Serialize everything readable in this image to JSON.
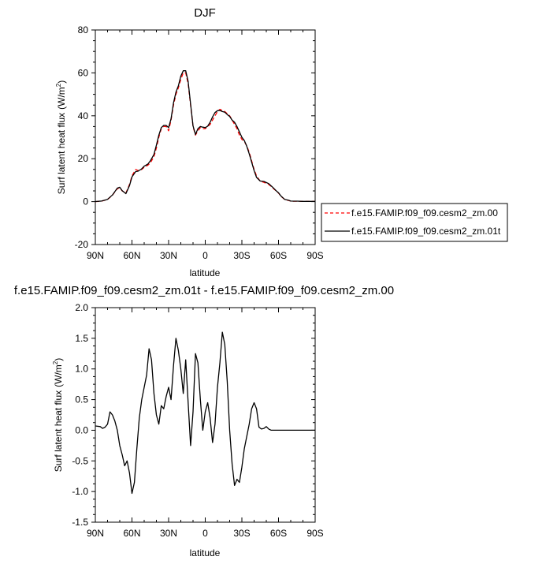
{
  "chart_data": [
    {
      "type": "line",
      "title": "DJF",
      "xlabel": "latitude",
      "ylabel": "Surf latent heat flux",
      "ylabel_unit": "(W/m",
      "ylabel_sup": "2",
      "ylabel_close": ")",
      "xlim": [
        90,
        -90
      ],
      "ylim": [
        -20,
        80
      ],
      "xticks": [
        90,
        60,
        30,
        0,
        -30,
        -60,
        -90
      ],
      "xtick_labels": [
        "90N",
        "60N",
        "30N",
        "0",
        "30S",
        "60S",
        "90S"
      ],
      "yticks": [
        -20,
        0,
        20,
        40,
        60,
        80
      ],
      "ytick_labels": [
        "-20",
        "0",
        "20",
        "40",
        "60",
        "80"
      ],
      "legend_position": "right",
      "series": [
        {
          "name": "f.e15.FAMIP.f09_f09.cesm2_zm.00",
          "color": "#ff0000",
          "dash": "dashed",
          "x": [
            90,
            85,
            80,
            76,
            72,
            70,
            68,
            65,
            62,
            60,
            57,
            55,
            52,
            50,
            47,
            45,
            42,
            40,
            38,
            36,
            34,
            32,
            30,
            28,
            26,
            24,
            22,
            20,
            18,
            16,
            14,
            12,
            10,
            8,
            6,
            4,
            2,
            0,
            -2,
            -4,
            -6,
            -8,
            -10,
            -12,
            -14,
            -16,
            -18,
            -20,
            -22,
            -24,
            -26,
            -28,
            -30,
            -32,
            -34,
            -36,
            -38,
            -40,
            -42,
            -45,
            -48,
            -50,
            -52,
            -55,
            -58,
            -60,
            -62,
            -65,
            -68,
            -70,
            -72,
            -75,
            -80,
            -85,
            -90
          ],
          "y": [
            0,
            0.2,
            1,
            3,
            6,
            6.5,
            5,
            4,
            8,
            12,
            15,
            14.5,
            15,
            16,
            17,
            18,
            21,
            25,
            30,
            34,
            35,
            35,
            33,
            38,
            45,
            50,
            53,
            57,
            60,
            60,
            55,
            45,
            35,
            31,
            33,
            34.5,
            34,
            34,
            35,
            36,
            38,
            40,
            42,
            43,
            42.5,
            42,
            41,
            40,
            38,
            36,
            34,
            31,
            29,
            28,
            26,
            23,
            19,
            15,
            12,
            9.5,
            9,
            8.5,
            8,
            6.5,
            5,
            4,
            2.5,
            1,
            0.6,
            0.2,
            0.2,
            0.2,
            0.1,
            0.1,
            0.1
          ]
        },
        {
          "name": "f.e15.FAMIP.f09_f09.cesm2_zm.01t",
          "color": "#000000",
          "dash": "solid",
          "x": [
            90,
            85,
            80,
            76,
            72,
            70,
            68,
            65,
            62,
            60,
            57,
            55,
            52,
            50,
            47,
            45,
            42,
            40,
            38,
            36,
            34,
            32,
            30,
            28,
            26,
            24,
            22,
            20,
            18,
            16,
            14,
            12,
            10,
            8,
            6,
            4,
            2,
            0,
            -2,
            -4,
            -6,
            -8,
            -10,
            -12,
            -14,
            -16,
            -18,
            -20,
            -22,
            -24,
            -26,
            -28,
            -30,
            -32,
            -34,
            -36,
            -38,
            -40,
            -42,
            -45,
            -48,
            -50,
            -52,
            -55,
            -58,
            -60,
            -62,
            -65,
            -68,
            -70,
            -72,
            -75,
            -80,
            -85,
            -90
          ],
          "y": [
            0.05,
            0.25,
            1.05,
            3.1,
            6.3,
            6.7,
            5.1,
            3.7,
            7.5,
            11.5,
            14,
            14.2,
            15.3,
            16.5,
            17.5,
            19,
            22,
            26.3,
            31,
            34.5,
            35.5,
            35.5,
            34.5,
            38.6,
            46,
            51,
            54,
            58.5,
            61,
            61,
            56,
            45.5,
            35.3,
            31.3,
            34,
            35,
            34.7,
            34.5,
            35.2,
            37,
            39.5,
            41.5,
            42.4,
            42.5,
            42,
            41.7,
            40.6,
            39.7,
            38,
            37,
            35,
            32.5,
            30,
            28.5,
            25.8,
            22.3,
            18.4,
            14.5,
            11.3,
            9.6,
            9.4,
            8.9,
            8.4,
            6.8,
            5.1,
            4.1,
            2.6,
            1.05,
            0.7,
            0.25,
            0.22,
            0.21,
            0.11,
            0.1,
            0.1
          ]
        }
      ]
    },
    {
      "type": "line",
      "title": "f.e15.FAMIP.f09_f09.cesm2_zm.01t - f.e15.FAMIP.f09_f09.cesm2_zm.00",
      "xlabel": "latitude",
      "ylabel": "Surf latent heat flux",
      "ylabel_unit": "(W/m",
      "ylabel_sup": "2",
      "ylabel_close": ")",
      "xlim": [
        90,
        -90
      ],
      "ylim": [
        -1.5,
        2.0
      ],
      "xticks": [
        90,
        60,
        30,
        0,
        -30,
        -60,
        -90
      ],
      "xtick_labels": [
        "90N",
        "60N",
        "30N",
        "0",
        "30S",
        "60S",
        "90S"
      ],
      "yticks": [
        -1.5,
        -1.0,
        -0.5,
        0.0,
        0.5,
        1.0,
        1.5,
        2.0
      ],
      "ytick_labels": [
        "-1.5",
        "-1.0",
        "-0.5",
        "0.0",
        "0.5",
        "1.0",
        "1.5",
        "2.0"
      ],
      "series": [
        {
          "color": "#000000",
          "dash": "solid",
          "x": [
            90,
            86,
            84,
            82,
            80,
            78,
            76,
            74,
            72,
            70,
            68,
            66,
            64,
            62,
            60,
            58,
            56,
            54,
            52,
            50,
            48,
            46,
            44,
            42,
            40,
            38,
            36,
            34,
            32,
            30,
            28,
            26,
            24,
            22,
            20,
            18,
            16,
            14,
            12,
            10,
            8,
            6,
            4,
            2,
            0,
            -2,
            -4,
            -6,
            -8,
            -10,
            -12,
            -14,
            -16,
            -18,
            -20,
            -22,
            -24,
            -26,
            -28,
            -30,
            -32,
            -34,
            -36,
            -38,
            -40,
            -42,
            -44,
            -46,
            -48,
            -50,
            -52,
            -54,
            -56,
            -58,
            -60,
            -62,
            -64,
            -66,
            -68,
            -70,
            -72,
            -74,
            -76,
            -80,
            -90
          ],
          "y": [
            0.07,
            0.06,
            0.03,
            0.05,
            0.1,
            0.3,
            0.25,
            0.15,
            0.0,
            -0.25,
            -0.4,
            -0.58,
            -0.5,
            -0.7,
            -1.03,
            -0.85,
            -0.3,
            0.2,
            0.5,
            0.7,
            0.9,
            1.33,
            1.15,
            0.6,
            0.25,
            0.1,
            0.4,
            0.35,
            0.55,
            0.7,
            0.5,
            1.05,
            1.5,
            1.3,
            1.0,
            0.6,
            1.15,
            0.45,
            -0.25,
            0.3,
            1.25,
            1.1,
            0.5,
            0.0,
            0.3,
            0.45,
            0.2,
            -0.2,
            0.1,
            0.7,
            1.1,
            1.6,
            1.4,
            0.8,
            0.0,
            -0.55,
            -0.9,
            -0.8,
            -0.85,
            -0.6,
            -0.3,
            -0.1,
            0.1,
            0.35,
            0.45,
            0.35,
            0.05,
            0.02,
            0.03,
            0.06,
            0.02,
            0.0,
            0.0,
            0.0,
            0.0,
            0.0,
            0.0,
            0.0,
            0.0,
            0.0,
            0.0,
            0.0,
            0.0,
            0.0,
            0.0
          ]
        }
      ]
    }
  ]
}
